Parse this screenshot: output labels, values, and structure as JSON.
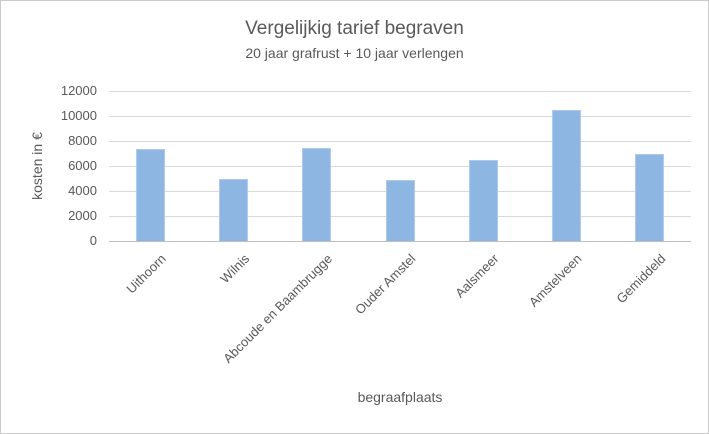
{
  "chart_data": {
    "type": "bar",
    "title": "Vergelijkig tarief begraven",
    "subtitle": "20 jaar grafrust + 10 jaar verlengen",
    "categories": [
      "Uithoorn",
      "Wilnis",
      "Abcoude en Baambrugge",
      "Ouder Amstel",
      "Aalsmeer",
      "Amstelveen",
      "Gemiddeld"
    ],
    "values": [
      7400,
      5000,
      7450,
      4900,
      6500,
      10500,
      6950
    ],
    "xlabel": "begraafplaats",
    "ylabel": "kosten in €",
    "ylim": [
      0,
      12000
    ],
    "yticks": [
      12000,
      10000,
      8000,
      6000,
      4000,
      2000,
      0
    ],
    "grid": true,
    "legend": false,
    "colors": {
      "bar_fill": "#8db6e2",
      "bar_border": "#aecbea",
      "gridline": "#d9d9d9",
      "axis_line": "#bfbfbf",
      "text": "#595959",
      "frame_border": "#cbcbcb",
      "background": "#ffffff"
    }
  }
}
